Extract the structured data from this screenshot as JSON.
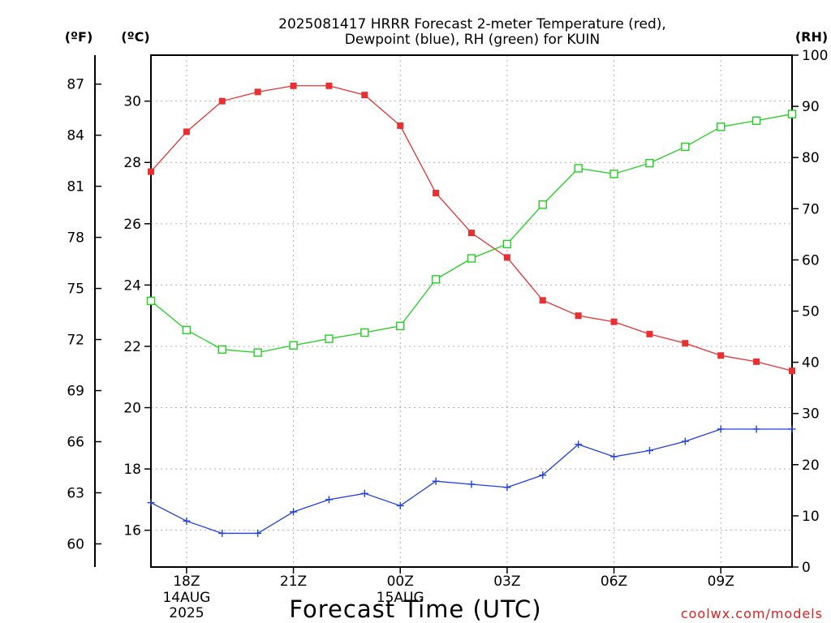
{
  "chart_data": {
    "type": "line",
    "title_lines": [
      "2025081417 HRRR Forecast 2-meter Temperature (red),",
      "Dewpoint (blue), RH (green) for KUIN"
    ],
    "xlabel": "Forecast Time (UTC)",
    "credit": "coolwx.com/models",
    "units": {
      "fahrenheit": "(ºF)",
      "celsius": "(ºC)",
      "rh": "(RH)"
    },
    "x_ticks": [
      {
        "hour": 1,
        "label": "18Z",
        "date": "14AUG",
        "year": "2025"
      },
      {
        "hour": 4,
        "label": "21Z",
        "date": "",
        "year": ""
      },
      {
        "hour": 7,
        "label": "00Z",
        "date": "15AUG",
        "year": ""
      },
      {
        "hour": 10,
        "label": "03Z",
        "date": "",
        "year": ""
      },
      {
        "hour": 13,
        "label": "06Z",
        "date": "",
        "year": ""
      },
      {
        "hour": 16,
        "label": "09Z",
        "date": "",
        "year": ""
      }
    ],
    "x_range": [
      0,
      18
    ],
    "celsius_axis": {
      "range": [
        14.8,
        31.5
      ],
      "ticks": [
        16,
        18,
        20,
        22,
        24,
        26,
        28,
        30
      ]
    },
    "fahrenheit_axis": {
      "ticks": [
        60,
        63,
        66,
        69,
        72,
        75,
        78,
        81,
        84,
        87
      ]
    },
    "rh_axis": {
      "range": [
        0,
        100
      ],
      "ticks": [
        0,
        10,
        20,
        30,
        40,
        50,
        60,
        70,
        80,
        90,
        100
      ]
    },
    "grid": true,
    "series": [
      {
        "color": "#e83030",
        "axis": "celsius",
        "marker": "filled-square",
        "values": [
          27.7,
          29.0,
          30.0,
          30.3,
          30.5,
          30.5,
          30.2,
          29.2,
          27.0,
          25.7,
          24.9,
          23.5,
          23.0,
          22.8,
          22.4,
          22.1,
          21.7,
          21.5,
          21.2
        ]
      },
      {
        "color": "#2040e0",
        "axis": "celsius",
        "marker": "plus",
        "values": [
          16.9,
          16.3,
          15.9,
          15.9,
          16.6,
          17.0,
          17.2,
          16.8,
          17.6,
          17.5,
          17.4,
          17.8,
          18.8,
          18.4,
          18.6,
          18.9,
          19.3,
          19.3,
          19.3
        ]
      },
      {
        "color": "#20d020",
        "axis": "rh",
        "marker": "open-square",
        "values": [
          52,
          46.3,
          42.5,
          41.9,
          43.3,
          44.6,
          45.8,
          47.1,
          56.2,
          60.3,
          63.1,
          70.8,
          77.9,
          76.8,
          78.9,
          82.1,
          86.0,
          87.2,
          88.5
        ]
      }
    ]
  }
}
